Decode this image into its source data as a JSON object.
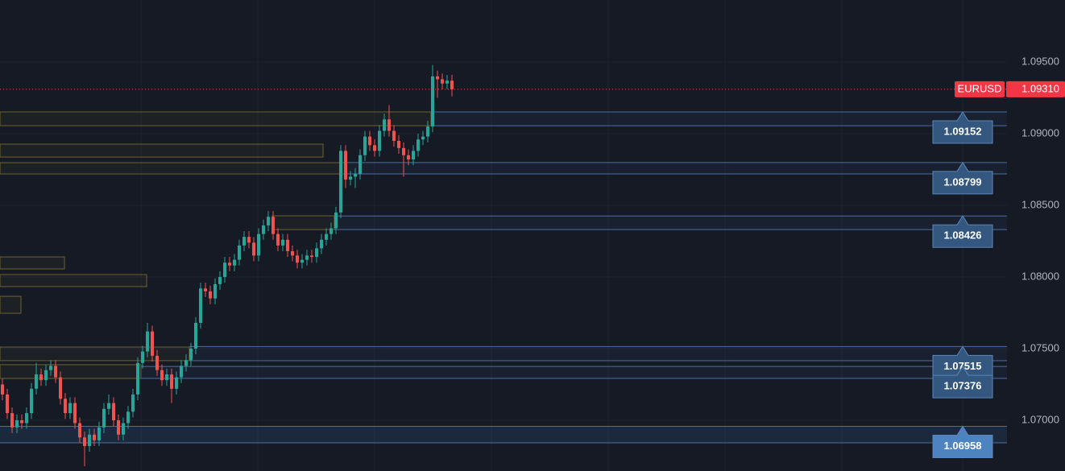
{
  "chart_data": {
    "type": "candlestick",
    "symbol": "EURUSD",
    "current_price": 1.0931,
    "current_price_label": "1.09310",
    "up_color": "#26a69a",
    "down_color": "#ef5350",
    "ylim": [
      1.06646,
      1.09933
    ],
    "yticks": [
      {
        "value": 1.07,
        "label": "1.07000"
      },
      {
        "value": 1.075,
        "label": "1.07500"
      },
      {
        "value": 1.08,
        "label": "1.08000"
      },
      {
        "value": 1.085,
        "label": "1.08500"
      },
      {
        "value": 1.09,
        "label": "1.09000"
      },
      {
        "value": 1.095,
        "label": "1.09500"
      }
    ],
    "grid": true,
    "levels": [
      {
        "value": 1.09152,
        "bottom": 1.09056
      },
      {
        "value": 1.08799,
        "bottom": 1.08719
      },
      {
        "value": 1.08426,
        "bottom": 1.08331
      },
      {
        "value": 1.07515,
        "bottom": 1.07416
      },
      {
        "value": 1.07376,
        "bottom": 1.07292
      },
      {
        "value": 1.06958,
        "bottom": 1.06843
      }
    ],
    "zones": [
      {
        "top": 1.09152,
        "bottom": 1.09056
      },
      {
        "top": 1.08927,
        "bottom": 1.08837
      },
      {
        "top": 1.08798,
        "bottom": 1.08719
      },
      {
        "top": 1.08427,
        "bottom": 1.08331
      },
      {
        "top": 1.0814,
        "bottom": 1.08056
      },
      {
        "top": 1.08017,
        "bottom": 1.07933
      },
      {
        "top": 1.07865,
        "bottom": 1.07747
      },
      {
        "top": 1.07511,
        "bottom": 1.07416
      },
      {
        "top": 1.07388,
        "bottom": 1.07292
      }
    ],
    "candles": [
      [
        1.0725,
        1.0729,
        1.0714,
        1.0718
      ],
      [
        1.0718,
        1.0722,
        1.0701,
        1.0705
      ],
      [
        1.0705,
        1.0709,
        1.0691,
        1.0695
      ],
      [
        1.0695,
        1.0704,
        1.0691,
        1.07
      ],
      [
        1.07,
        1.0704,
        1.0694,
        1.0698
      ],
      [
        1.0698,
        1.0709,
        1.0694,
        1.0705
      ],
      [
        1.0705,
        1.0726,
        1.0701,
        1.0722
      ],
      [
        1.0722,
        1.074,
        1.0718,
        1.0732
      ],
      [
        1.0732,
        1.0736,
        1.0724,
        1.0728
      ],
      [
        1.0728,
        1.0739,
        1.0724,
        1.0735
      ],
      [
        1.0735,
        1.0742,
        1.0731,
        1.0738
      ],
      [
        1.0738,
        1.0742,
        1.0726,
        1.073
      ],
      [
        1.073,
        1.0734,
        1.0711,
        1.0715
      ],
      [
        1.0715,
        1.0719,
        1.0701,
        1.0705
      ],
      [
        1.0705,
        1.0716,
        1.0701,
        1.0712
      ],
      [
        1.0712,
        1.0716,
        1.0694,
        1.0698
      ],
      [
        1.0698,
        1.0702,
        1.0684,
        1.0688
      ],
      [
        1.0688,
        1.0692,
        1.0668,
        1.0682
      ],
      [
        1.0682,
        1.0694,
        1.0678,
        1.069
      ],
      [
        1.069,
        1.0694,
        1.0682,
        1.0686
      ],
      [
        1.0686,
        1.0699,
        1.0682,
        1.0695
      ],
      [
        1.0695,
        1.0712,
        1.0691,
        1.0708
      ],
      [
        1.0708,
        1.0718,
        1.0704,
        1.0712
      ],
      [
        1.0712,
        1.0716,
        1.0696,
        1.07
      ],
      [
        1.07,
        1.0704,
        1.0686,
        1.069
      ],
      [
        1.069,
        1.0702,
        1.0686,
        1.0698
      ],
      [
        1.0698,
        1.071,
        1.0694,
        1.0706
      ],
      [
        1.0706,
        1.0722,
        1.0702,
        1.0718
      ],
      [
        1.0718,
        1.0744,
        1.0714,
        1.074
      ],
      [
        1.074,
        1.0752,
        1.0736,
        1.0748
      ],
      [
        1.0748,
        1.0768,
        1.0744,
        1.0762
      ],
      [
        1.0762,
        1.0766,
        1.0741,
        1.0745
      ],
      [
        1.0745,
        1.0749,
        1.0731,
        1.0735
      ],
      [
        1.0735,
        1.0739,
        1.0724,
        1.0728
      ],
      [
        1.0728,
        1.0736,
        1.0724,
        1.0732
      ],
      [
        1.0732,
        1.0736,
        1.0712,
        1.0722
      ],
      [
        1.0722,
        1.0734,
        1.0718,
        1.073
      ],
      [
        1.073,
        1.0742,
        1.0726,
        1.0738
      ],
      [
        1.0738,
        1.0746,
        1.0734,
        1.0742
      ],
      [
        1.0742,
        1.0754,
        1.0738,
        1.075
      ],
      [
        1.075,
        1.0772,
        1.0746,
        1.0768
      ],
      [
        1.0768,
        1.0796,
        1.0764,
        1.0792
      ],
      [
        1.0792,
        1.0796,
        1.0786,
        1.079
      ],
      [
        1.079,
        1.0794,
        1.0781,
        1.0785
      ],
      [
        1.0785,
        1.0799,
        1.0781,
        1.0795
      ],
      [
        1.0795,
        1.0804,
        1.0791,
        1.08
      ],
      [
        1.08,
        1.0814,
        1.0796,
        1.081
      ],
      [
        1.081,
        1.0814,
        1.0804,
        1.0808
      ],
      [
        1.0808,
        1.0816,
        1.0804,
        1.0812
      ],
      [
        1.0812,
        1.0826,
        1.0808,
        1.0822
      ],
      [
        1.0822,
        1.0832,
        1.0818,
        1.0828
      ],
      [
        1.0828,
        1.0832,
        1.082,
        1.0824
      ],
      [
        1.0824,
        1.0828,
        1.0811,
        1.0815
      ],
      [
        1.0815,
        1.0834,
        1.0811,
        1.083
      ],
      [
        1.083,
        1.084,
        1.0826,
        1.0836
      ],
      [
        1.0836,
        1.0846,
        1.0832,
        1.0842
      ],
      [
        1.0842,
        1.0846,
        1.0826,
        1.083
      ],
      [
        1.083,
        1.0834,
        1.0818,
        1.0822
      ],
      [
        1.0822,
        1.083,
        1.0818,
        1.0826
      ],
      [
        1.0826,
        1.083,
        1.0814,
        1.0818
      ],
      [
        1.0818,
        1.0822,
        1.0811,
        1.0815
      ],
      [
        1.0815,
        1.0819,
        1.0806,
        1.081
      ],
      [
        1.081,
        1.0816,
        1.0806,
        1.0812
      ],
      [
        1.0812,
        1.0819,
        1.0808,
        1.0815
      ],
      [
        1.0815,
        1.0819,
        1.081,
        1.0814
      ],
      [
        1.0814,
        1.0824,
        1.081,
        1.082
      ],
      [
        1.082,
        1.083,
        1.0816,
        1.0826
      ],
      [
        1.0826,
        1.0834,
        1.0822,
        1.083
      ],
      [
        1.083,
        1.0838,
        1.0826,
        1.0834
      ],
      [
        1.0834,
        1.0849,
        1.083,
        1.0845
      ],
      [
        1.0845,
        1.0892,
        1.0841,
        1.0888
      ],
      [
        1.0888,
        1.0892,
        1.0862,
        1.0868
      ],
      [
        1.0868,
        1.0874,
        1.0864,
        1.087
      ],
      [
        1.087,
        1.0876,
        1.0862,
        1.0872
      ],
      [
        1.0872,
        1.0889,
        1.0868,
        1.0885
      ],
      [
        1.0885,
        1.0902,
        1.0881,
        1.0898
      ],
      [
        1.0898,
        1.0902,
        1.0888,
        1.0892
      ],
      [
        1.0892,
        1.0896,
        1.0884,
        1.0888
      ],
      [
        1.0888,
        1.0906,
        1.0884,
        1.0902
      ],
      [
        1.0902,
        1.0914,
        1.0898,
        1.091
      ],
      [
        1.091,
        1.092,
        1.0898,
        1.0902
      ],
      [
        1.0902,
        1.0906,
        1.0891,
        1.0895
      ],
      [
        1.0895,
        1.0899,
        1.0886,
        1.089
      ],
      [
        1.089,
        1.0894,
        1.087,
        1.0885
      ],
      [
        1.0885,
        1.0889,
        1.0878,
        1.0882
      ],
      [
        1.0882,
        1.0892,
        1.0878,
        1.0888
      ],
      [
        1.0888,
        1.09,
        1.0884,
        1.0896
      ],
      [
        1.0896,
        1.0902,
        1.0892,
        1.0898
      ],
      [
        1.0898,
        1.0909,
        1.0894,
        1.0905
      ],
      [
        1.0905,
        1.0948,
        1.0901,
        1.094
      ],
      [
        1.094,
        1.0944,
        1.0925,
        1.0938
      ],
      [
        1.0938,
        1.0942,
        1.0931,
        1.0935
      ],
      [
        1.0935,
        1.0941,
        1.0931,
        1.0937
      ],
      [
        1.0937,
        1.0941,
        1.0926,
        1.0931
      ]
    ]
  }
}
